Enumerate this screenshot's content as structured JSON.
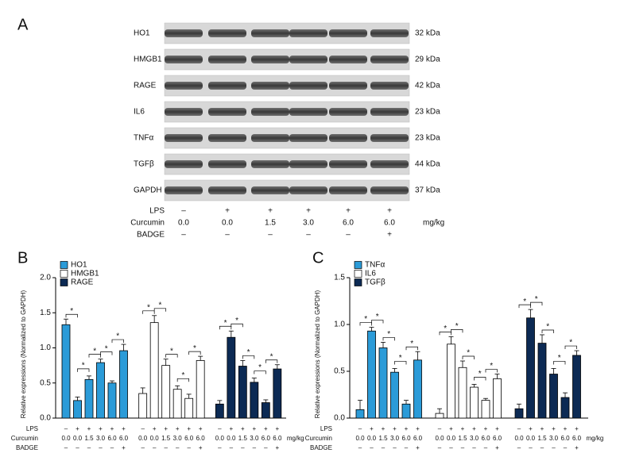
{
  "panel_labels": [
    "A",
    "B",
    "C"
  ],
  "blot": {
    "proteins": [
      {
        "name": "HO1",
        "size": "32 kDa"
      },
      {
        "name": "HMGB1",
        "size": "29 kDa"
      },
      {
        "name": "RAGE",
        "size": "42 kDa"
      },
      {
        "name": "IL6",
        "size": "23 kDa"
      },
      {
        "name": "TNFα",
        "size": "23 kDa"
      },
      {
        "name": "TGFβ",
        "size": "44 kDa"
      },
      {
        "name": "GAPDH",
        "size": "37 kDa"
      }
    ],
    "conditions": [
      {
        "label": "LPS",
        "values": [
          "–",
          "+",
          "+",
          "+",
          "+",
          "+"
        ]
      },
      {
        "label": "Curcumin",
        "values": [
          "0.0",
          "0.0",
          "1.5",
          "3.0",
          "6.0",
          "6.0"
        ]
      },
      {
        "label": "BADGE",
        "values": [
          "–",
          "–",
          "–",
          "–",
          "–",
          "+"
        ]
      }
    ],
    "unit": "mg/kg"
  },
  "chart_data": [
    {
      "type": "bar",
      "ylabel": "Relative expressions (Normalized to GAPDH)",
      "ylim": [
        0,
        2
      ],
      "yticks": [
        {
          "value": 0,
          "label": "0.0"
        },
        {
          "value": 0.5,
          "label": "0.5"
        },
        {
          "value": 1,
          "label": "1.0"
        },
        {
          "value": 1.5,
          "label": "1.5"
        },
        {
          "value": 2,
          "label": "2.0"
        }
      ],
      "series": [
        {
          "name": "HO1",
          "color": "#2b9bd8",
          "values": [
            1.33,
            0.25,
            0.55,
            0.79,
            0.5,
            0.96
          ],
          "errors": [
            0.08,
            0.05,
            0.05,
            0.05,
            0.03,
            0.09
          ]
        },
        {
          "name": "HMGB1",
          "color": "#ffffff",
          "values": [
            0.35,
            1.36,
            0.75,
            0.41,
            0.28,
            0.82
          ],
          "errors": [
            0.08,
            0.1,
            0.09,
            0.05,
            0.06,
            0.06
          ]
        },
        {
          "name": "RAGE",
          "color": "#0c2a54",
          "values": [
            0.2,
            1.15,
            0.74,
            0.51,
            0.22,
            0.7
          ],
          "errors": [
            0.05,
            0.09,
            0.08,
            0.06,
            0.04,
            0.06
          ]
        }
      ],
      "conditions": [
        {
          "label": "LPS",
          "values": [
            "–",
            "+",
            "+",
            "+",
            "+",
            "+"
          ]
        },
        {
          "label": "Curcumin",
          "values": [
            "0.0",
            "0.0",
            "1.5",
            "3.0",
            "6.0",
            "6.0"
          ]
        },
        {
          "label": "BADGE",
          "values": [
            "–",
            "–",
            "–",
            "–",
            "–",
            "+"
          ]
        }
      ],
      "unit": "mg/kg",
      "significance": {
        "label": "*",
        "pairs": [
          [
            0,
            1
          ],
          [
            1,
            2
          ],
          [
            2,
            3
          ],
          [
            3,
            4
          ],
          [
            4,
            5
          ]
        ]
      }
    },
    {
      "type": "bar",
      "ylabel": "Relative expressions (Normalized to GAPDH)",
      "ylim": [
        0,
        1.5
      ],
      "yticks": [
        {
          "value": 0,
          "label": "0.0"
        },
        {
          "value": 0.5,
          "label": "0.5"
        },
        {
          "value": 1,
          "label": "1.0"
        },
        {
          "value": 1.5,
          "label": "1.5"
        }
      ],
      "series": [
        {
          "name": "TNFα",
          "color": "#2b9bd8",
          "values": [
            0.09,
            0.93,
            0.75,
            0.49,
            0.15,
            0.62
          ],
          "errors": [
            0.1,
            0.04,
            0.06,
            0.04,
            0.04,
            0.09
          ]
        },
        {
          "name": "IL6",
          "color": "#ffffff",
          "values": [
            0.05,
            0.79,
            0.54,
            0.33,
            0.19,
            0.42
          ],
          "errors": [
            0.05,
            0.08,
            0.07,
            0.03,
            0.02,
            0.05
          ]
        },
        {
          "name": "TGFβ",
          "color": "#0c2a54",
          "values": [
            0.1,
            1.07,
            0.8,
            0.47,
            0.22,
            0.67
          ],
          "errors": [
            0.05,
            0.09,
            0.09,
            0.06,
            0.05,
            0.05
          ]
        }
      ],
      "conditions": [
        {
          "label": "LPS",
          "values": [
            "–",
            "+",
            "+",
            "+",
            "+",
            "+"
          ]
        },
        {
          "label": "Curcumin",
          "values": [
            "0.0",
            "0.0",
            "1.5",
            "3.0",
            "6.0",
            "6.0"
          ]
        },
        {
          "label": "BADGE",
          "values": [
            "–",
            "–",
            "–",
            "–",
            "–",
            "+"
          ]
        }
      ],
      "unit": "mg/kg",
      "significance": {
        "label": "*",
        "pairs": [
          [
            0,
            1
          ],
          [
            1,
            2
          ],
          [
            2,
            3
          ],
          [
            3,
            4
          ],
          [
            4,
            5
          ]
        ]
      }
    }
  ]
}
